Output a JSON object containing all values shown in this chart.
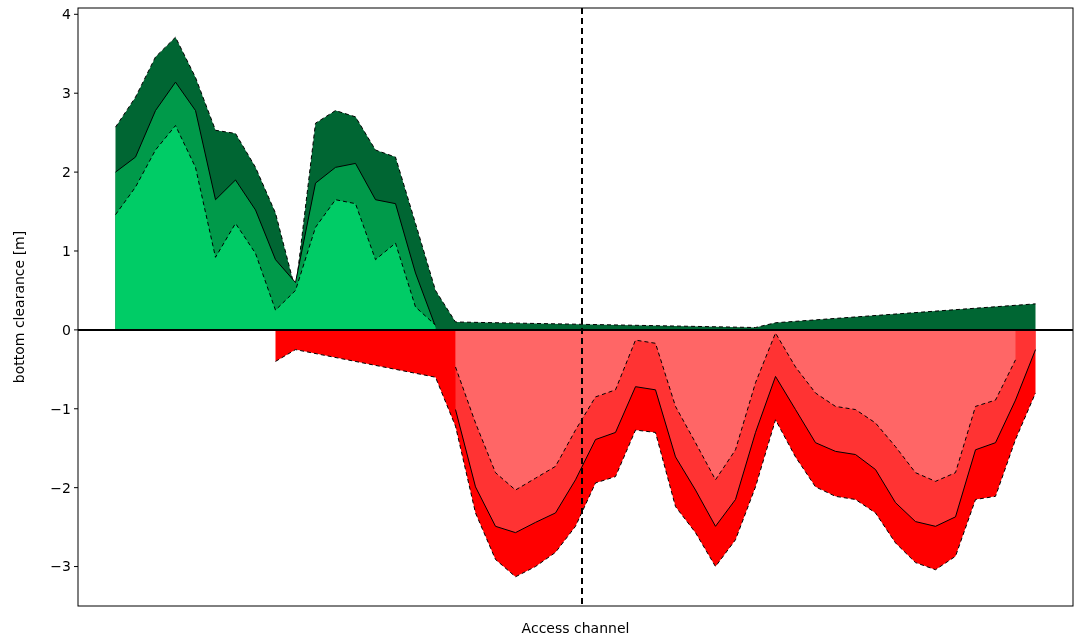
{
  "chart_data": {
    "type": "area",
    "xlabel": "Access channel",
    "ylabel": "bottom clearance [m]",
    "tick_labels": "y",
    "ylim": [
      -3.5,
      4.08
    ],
    "yticks": [
      -3,
      -2,
      -1,
      0,
      1,
      2,
      3,
      4
    ],
    "categories": [
      null,
      null,
      null,
      null,
      null,
      null,
      null,
      null,
      null,
      null,
      null,
      null,
      null,
      null,
      null,
      null,
      null,
      null,
      null,
      null,
      null,
      null,
      null,
      null,
      null,
      null,
      null,
      null,
      null,
      null,
      null,
      null,
      null,
      null,
      null,
      null,
      null,
      null,
      null,
      null,
      null,
      null,
      null,
      null,
      null,
      null,
      null
    ],
    "series": [
      {
        "color": "#006633",
        "line_style": "dashed",
        "values": [
          2.57,
          2.95,
          3.46,
          3.71,
          3.2,
          2.53,
          2.49,
          2.06,
          1.48,
          0.5,
          2.62,
          2.78,
          2.7,
          2.28,
          2.19,
          1.35,
          0.5,
          0.1,
          null,
          null,
          null,
          null,
          null,
          null,
          null,
          null,
          null,
          null,
          null,
          null,
          null,
          null,
          0.03,
          0.09,
          null,
          null,
          null,
          null,
          null,
          null,
          null,
          null,
          null,
          null,
          null,
          null,
          0.33
        ]
      },
      {
        "color": "#009a4a",
        "line_style": "solid",
        "values": [
          2.0,
          2.19,
          2.78,
          3.14,
          2.78,
          1.65,
          1.9,
          1.52,
          0.89,
          0.6,
          1.86,
          2.06,
          2.11,
          1.65,
          1.6,
          0.72,
          0.04,
          null,
          null,
          null,
          null,
          null,
          null,
          null,
          null,
          null,
          null,
          null,
          null,
          null,
          null,
          null,
          null,
          null,
          null,
          null,
          null,
          null,
          null,
          null,
          null,
          null,
          null,
          null,
          null,
          null,
          null
        ]
      },
      {
        "color": "#00cc66",
        "line_style": "dashed",
        "values": [
          1.46,
          1.81,
          2.28,
          2.59,
          2.06,
          0.92,
          1.35,
          0.97,
          0.25,
          0.5,
          1.3,
          1.65,
          1.6,
          0.89,
          1.1,
          0.29,
          0.06,
          null,
          null,
          null,
          null,
          null,
          null,
          null,
          null,
          null,
          null,
          null,
          null,
          null,
          null,
          null,
          null,
          null,
          null,
          null,
          null,
          null,
          null,
          null,
          null,
          null,
          null,
          null,
          null,
          null,
          null
        ]
      },
      {
        "color": "#ff0000",
        "line_style": "dashed",
        "values": [
          null,
          null,
          null,
          null,
          null,
          null,
          null,
          null,
          -0.4,
          -0.25,
          null,
          null,
          null,
          null,
          null,
          null,
          -0.6,
          -1.22,
          -2.32,
          -2.91,
          -3.13,
          -3.0,
          -2.82,
          -2.49,
          -1.94,
          -1.86,
          -1.27,
          -1.3,
          -2.24,
          -2.57,
          -3.0,
          -2.66,
          -1.99,
          -1.14,
          -1.61,
          -1.99,
          -2.11,
          -2.15,
          -2.32,
          -2.7,
          -2.95,
          -3.04,
          -2.87,
          -2.15,
          -2.11,
          -1.39,
          -0.8
        ]
      },
      {
        "color": "#ff3333",
        "line_style": "solid",
        "values": [
          null,
          null,
          null,
          null,
          null,
          null,
          null,
          null,
          null,
          null,
          null,
          null,
          null,
          null,
          null,
          null,
          null,
          -1.01,
          -1.99,
          -2.49,
          -2.57,
          -2.44,
          -2.32,
          -1.9,
          -1.39,
          -1.3,
          -0.72,
          -0.76,
          -1.61,
          -2.03,
          -2.49,
          -2.15,
          -1.3,
          -0.59,
          -1.01,
          -1.43,
          -1.54,
          -1.58,
          -1.77,
          -2.19,
          -2.43,
          -2.49,
          -2.37,
          -1.52,
          -1.43,
          -0.89,
          -0.25
        ]
      },
      {
        "color": "#ff6666",
        "line_style": "dashed",
        "values": [
          null,
          null,
          null,
          null,
          null,
          null,
          null,
          null,
          null,
          null,
          null,
          null,
          null,
          null,
          null,
          null,
          null,
          -0.47,
          -1.18,
          -1.81,
          -2.03,
          -1.88,
          -1.73,
          -1.27,
          -0.85,
          -0.76,
          -0.13,
          -0.17,
          -0.97,
          -1.43,
          -1.9,
          -1.52,
          -0.67,
          -0.04,
          -0.47,
          -0.8,
          -0.97,
          -1.01,
          -1.18,
          -1.48,
          -1.81,
          -1.92,
          -1.81,
          -0.97,
          -0.89,
          -0.38,
          null
        ]
      }
    ],
    "ref_lines": [
      {
        "axis": "y",
        "value": 0,
        "color": "#000000",
        "line_style": "solid"
      }
    ]
  }
}
